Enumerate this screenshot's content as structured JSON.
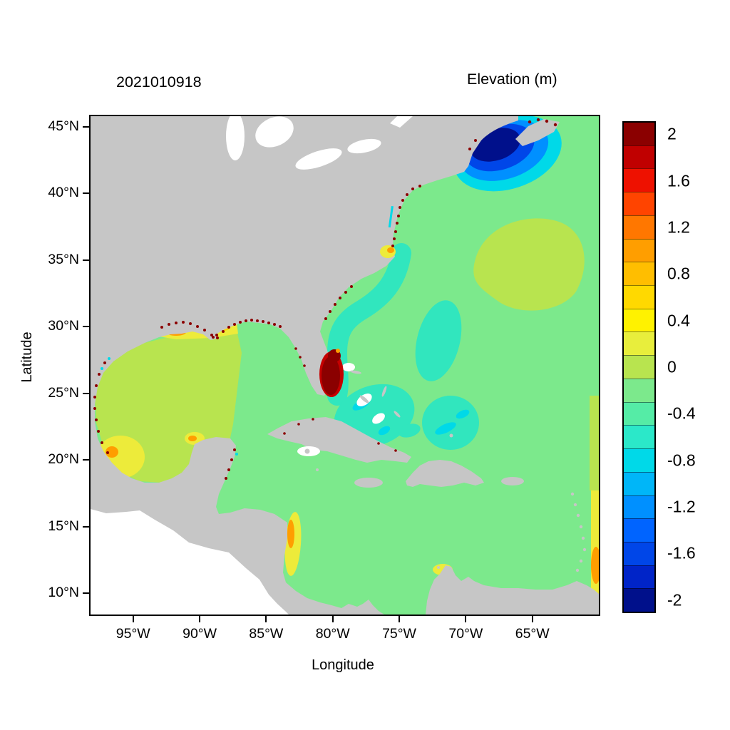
{
  "header": {
    "timestamp": "2021010918",
    "units_title": "Elevation (m)"
  },
  "axes": {
    "x_label": "Longitude",
    "y_label": "Latitude",
    "lat_ticks": [
      {
        "label": "45°N",
        "value": 45
      },
      {
        "label": "40°N",
        "value": 40
      },
      {
        "label": "35°N",
        "value": 35
      },
      {
        "label": "30°N",
        "value": 30
      },
      {
        "label": "25°N",
        "value": 25
      },
      {
        "label": "20°N",
        "value": 20
      },
      {
        "label": "15°N",
        "value": 15
      },
      {
        "label": "10°N",
        "value": 10
      }
    ],
    "lon_ticks": [
      {
        "label": "95°W",
        "value": 95
      },
      {
        "label": "90°W",
        "value": 90
      },
      {
        "label": "85°W",
        "value": 85
      },
      {
        "label": "80°W",
        "value": 80
      },
      {
        "label": "75°W",
        "value": 75
      },
      {
        "label": "70°W",
        "value": 70
      },
      {
        "label": "65°W",
        "value": 65
      }
    ]
  },
  "colorbar": {
    "range": [
      -2.1,
      2.1
    ],
    "labels": [
      {
        "text": "2",
        "value": 2
      },
      {
        "text": "1.6",
        "value": 1.6
      },
      {
        "text": "1.2",
        "value": 1.2
      },
      {
        "text": "0.8",
        "value": 0.8
      },
      {
        "text": "0.4",
        "value": 0.4
      },
      {
        "text": "0",
        "value": 0
      },
      {
        "text": "-0.4",
        "value": -0.4
      },
      {
        "text": "-0.8",
        "value": -0.8
      },
      {
        "text": "-1.2",
        "value": -1.2
      },
      {
        "text": "-1.6",
        "value": -1.6
      },
      {
        "text": "-2",
        "value": -2
      }
    ],
    "palette_top_to_bottom": [
      "#8B0000",
      "#C00000",
      "#EE1100",
      "#FF4400",
      "#FF7700",
      "#FF9E00",
      "#FFBE00",
      "#FFD900",
      "#FFF200",
      "#E8EE3C",
      "#B8E44F",
      "#7CE98C",
      "#55ECA6",
      "#2BE8C9",
      "#00D9E8",
      "#00B6F8",
      "#0090FF",
      "#0064FF",
      "#0046E8",
      "#0024C8",
      "#00108B"
    ]
  },
  "colors": {
    "ocean": "#7CE98C",
    "land": "#C6C6C6",
    "nodata": "#FFFFFF",
    "pos_weak": "#B8E44F",
    "pos_med": "#EDEB3A",
    "pos_gold": "#FFD400",
    "pos_strong": "#FF9E00",
    "neg_band": "#31E6BE",
    "neg_cyan": "#00D9E8",
    "neg_skyblue": "#0090FF",
    "neg_blue": "#0046E8",
    "neg_navy": "#00108B",
    "surge_core": "#8B0000",
    "surge_mid": "#C40000",
    "speck": "#8B0000",
    "frame": "#000000"
  },
  "chart_data": {
    "type": "heatmap",
    "title": "Elevation (m)",
    "timestamp": "2021010918",
    "xlabel": "Longitude",
    "ylabel": "Latitude",
    "x_range_deg_west": [
      98.2,
      60.0
    ],
    "y_range_deg_north": [
      8.4,
      45.8
    ],
    "colorbar": {
      "units": "m",
      "min": -2,
      "max": 2,
      "label_step": 0.4,
      "bin_step": 0.2
    },
    "background_value_m": 0.1,
    "land_shown_as": "gray",
    "no_data_shown_as": "white",
    "features": [
      {
        "name": "deep-negative-anomaly-gulf-of-maine",
        "lon": -68.5,
        "lat": 43.3,
        "value_m": -2.0
      },
      {
        "name": "strong-positive-anomaly-florida-east-coast",
        "lon": -80.3,
        "lat": 26.5,
        "value_m": 2.0
      },
      {
        "name": "positive-region-western-gulf-of-mexico",
        "lon": -94.0,
        "lat": 24.0,
        "value_m": 0.3
      },
      {
        "name": "positive-patch-bay-of-campeche",
        "lon": -96.0,
        "lat": 20.0,
        "value_m": 0.5
      },
      {
        "name": "positive-band-louisiana-texas-shelf",
        "lon": -92.0,
        "lat": 29.0,
        "value_m": 0.7
      },
      {
        "name": "positive-spot-pamlico-sound",
        "lon": -76.0,
        "lat": 35.3,
        "value_m": 0.6
      },
      {
        "name": "negative-band-southeast-us-coast",
        "lon": -79.5,
        "lat": 31.0,
        "value_m": -0.3
      },
      {
        "name": "negative-patch-bahamas-turks",
        "lon": -71.5,
        "lat": 22.5,
        "value_m": -0.5
      },
      {
        "name": "positive-patch-open-atlantic",
        "lon": -66.0,
        "lat": 35.0,
        "value_m": 0.3
      },
      {
        "name": "positive-band-nicaragua-coast",
        "lon": -82.8,
        "lat": 13.5,
        "value_m": 0.5
      },
      {
        "name": "positive-strip-southeast-boundary",
        "lon": -60.3,
        "lat": 12.0,
        "value_m": 0.5
      },
      {
        "name": "coastal-positive-specks-gulf-and-east-coast",
        "value_m": 2.0
      },
      {
        "name": "background-caribbean-and-atlantic",
        "value_m": 0.1
      }
    ]
  }
}
